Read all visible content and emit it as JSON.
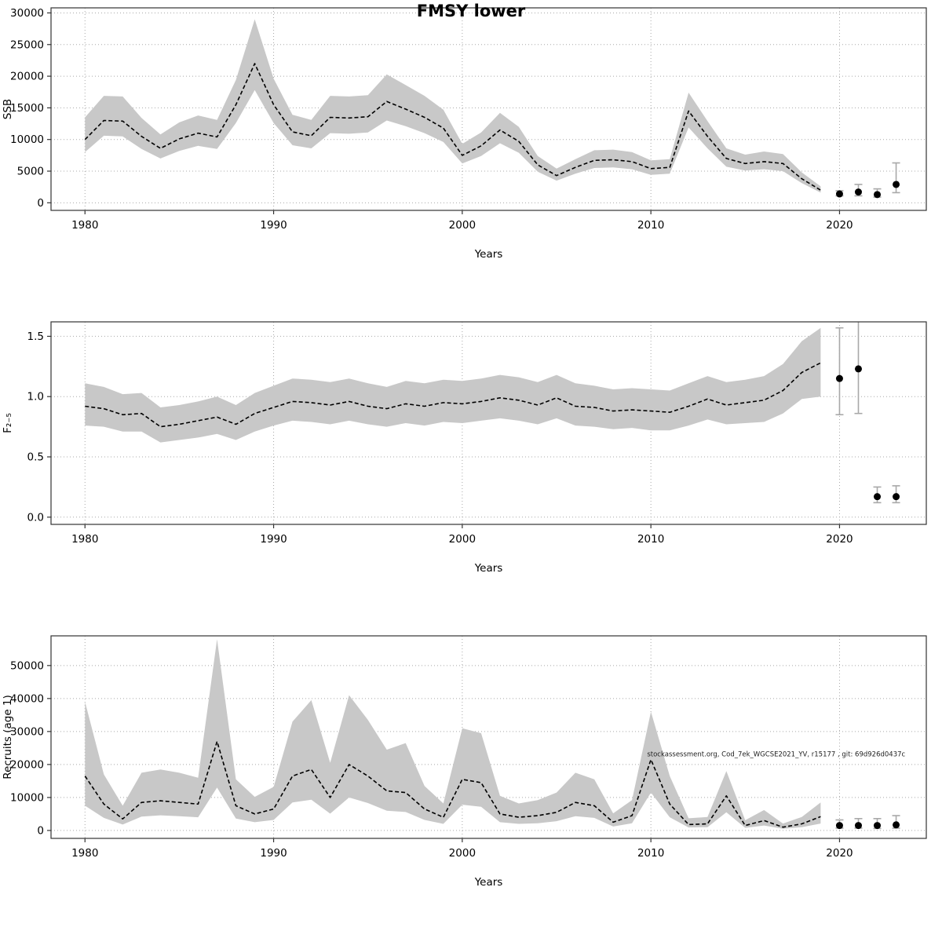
{
  "title": "FMSY lower",
  "colors": {
    "band": "#c8c8c8",
    "line": "#000000",
    "point": "#000000",
    "errorbar": "#a8a8a8"
  },
  "chart_data": [
    {
      "id": "ssb",
      "type": "line",
      "title": "FMSY lower",
      "xlabel": "Years",
      "ylabel": "SSB",
      "legend": "mean with confidence band; forecast points with error bars",
      "grid": true,
      "xlim": [
        1978.2,
        2024.6
      ],
      "ylim": [
        -1200,
        30800
      ],
      "xticks": [
        1980,
        1990,
        2000,
        2010,
        2020
      ],
      "xticklabels": [
        "1980",
        "1990",
        "2000",
        "2010",
        "2020"
      ],
      "yticks": [
        0,
        5000,
        10000,
        15000,
        20000,
        25000,
        30000
      ],
      "yticklabels": [
        "0",
        "5000",
        "10000",
        "15000",
        "20000",
        "25000",
        "30000"
      ],
      "x": [
        1980,
        1981,
        1982,
        1983,
        1984,
        1985,
        1986,
        1987,
        1988,
        1989,
        1990,
        1991,
        1992,
        1993,
        1994,
        1995,
        1996,
        1997,
        1998,
        1999,
        2000,
        2001,
        2002,
        2003,
        2004,
        2005,
        2006,
        2007,
        2008,
        2009,
        2010,
        2011,
        2012,
        2013,
        2014,
        2015,
        2016,
        2017,
        2018,
        2019
      ],
      "mean": [
        10000,
        13000,
        12900,
        10500,
        8600,
        10100,
        11000,
        10400,
        15500,
        22000,
        15500,
        11200,
        10600,
        13500,
        13400,
        13600,
        16000,
        14800,
        13500,
        11800,
        7500,
        9000,
        11500,
        9700,
        6000,
        4300,
        5600,
        6700,
        6800,
        6500,
        5400,
        5600,
        14500,
        10500,
        7000,
        6200,
        6500,
        6200,
        3800,
        2000
      ],
      "lo": [
        8000,
        10600,
        10500,
        8500,
        7000,
        8200,
        9000,
        8500,
        12600,
        17800,
        12600,
        9100,
        8600,
        11000,
        10900,
        11100,
        13000,
        12100,
        11000,
        9600,
        6200,
        7400,
        9400,
        7900,
        4900,
        3500,
        4600,
        5500,
        5600,
        5300,
        4400,
        4600,
        11900,
        8600,
        5700,
        5100,
        5300,
        5000,
        3100,
        1600
      ],
      "hi": [
        13500,
        16900,
        16800,
        13400,
        10800,
        12700,
        13800,
        13100,
        19400,
        29000,
        19600,
        13900,
        13100,
        16900,
        16800,
        17000,
        20300,
        18600,
        16900,
        14700,
        9300,
        11100,
        14200,
        12000,
        7400,
        5400,
        6900,
        8300,
        8400,
        8000,
        6700,
        6900,
        17400,
        12900,
        8600,
        7600,
        8100,
        7700,
        4800,
        2600
      ],
      "points": {
        "x": [
          2020,
          2021,
          2022,
          2023
        ],
        "y": [
          1400,
          1700,
          1300,
          2900
        ],
        "lo": [
          1100,
          1100,
          900,
          1600
        ],
        "hi": [
          1900,
          2900,
          2200,
          6300
        ]
      }
    },
    {
      "id": "f",
      "type": "line",
      "title": "",
      "xlabel": "Years",
      "ylabel": "F₂₋₅",
      "legend": "mean with confidence band; forecast points with error bars",
      "grid": true,
      "xlim": [
        1978.2,
        2024.6
      ],
      "ylim": [
        -0.06,
        1.62
      ],
      "xticks": [
        1980,
        1990,
        2000,
        2010,
        2020
      ],
      "xticklabels": [
        "1980",
        "1990",
        "2000",
        "2010",
        "2020"
      ],
      "yticks": [
        0,
        0.5,
        1,
        1.5
      ],
      "yticklabels": [
        "0.0",
        "0.5",
        "1.0",
        "1.5"
      ],
      "x": [
        1980,
        1981,
        1982,
        1983,
        1984,
        1985,
        1986,
        1987,
        1988,
        1989,
        1990,
        1991,
        1992,
        1993,
        1994,
        1995,
        1996,
        1997,
        1998,
        1999,
        2000,
        2001,
        2002,
        2003,
        2004,
        2005,
        2006,
        2007,
        2008,
        2009,
        2010,
        2011,
        2012,
        2013,
        2014,
        2015,
        2016,
        2017,
        2018,
        2019
      ],
      "mean": [
        0.92,
        0.9,
        0.85,
        0.86,
        0.75,
        0.77,
        0.8,
        0.83,
        0.77,
        0.86,
        0.91,
        0.96,
        0.95,
        0.93,
        0.96,
        0.92,
        0.9,
        0.94,
        0.92,
        0.95,
        0.94,
        0.96,
        0.99,
        0.97,
        0.93,
        0.99,
        0.92,
        0.91,
        0.88,
        0.89,
        0.88,
        0.87,
        0.92,
        0.98,
        0.93,
        0.95,
        0.97,
        1.05,
        1.2,
        1.28
      ],
      "lo": [
        0.76,
        0.75,
        0.71,
        0.71,
        0.62,
        0.64,
        0.66,
        0.69,
        0.64,
        0.71,
        0.76,
        0.8,
        0.79,
        0.77,
        0.8,
        0.77,
        0.75,
        0.78,
        0.76,
        0.79,
        0.78,
        0.8,
        0.82,
        0.8,
        0.77,
        0.82,
        0.76,
        0.75,
        0.73,
        0.74,
        0.72,
        0.72,
        0.76,
        0.81,
        0.77,
        0.78,
        0.79,
        0.86,
        0.98,
        1.0
      ],
      "hi": [
        1.11,
        1.08,
        1.02,
        1.03,
        0.91,
        0.93,
        0.96,
        1.0,
        0.93,
        1.03,
        1.09,
        1.15,
        1.14,
        1.12,
        1.15,
        1.11,
        1.08,
        1.13,
        1.11,
        1.14,
        1.13,
        1.15,
        1.18,
        1.16,
        1.12,
        1.18,
        1.11,
        1.09,
        1.06,
        1.07,
        1.06,
        1.05,
        1.11,
        1.17,
        1.12,
        1.14,
        1.17,
        1.27,
        1.46,
        1.57
      ],
      "points": {
        "x": [
          2020,
          2021,
          2022,
          2023
        ],
        "y": [
          1.15,
          1.23,
          0.17,
          0.17
        ],
        "lo": [
          0.85,
          0.86,
          0.12,
          0.12
        ],
        "hi": [
          1.57,
          1.78,
          0.25,
          0.26
        ]
      }
    },
    {
      "id": "recruits",
      "type": "line",
      "title": "",
      "xlabel": "Years",
      "ylabel": "Recruits (age 1)",
      "legend": "mean with confidence band; forecast points with error bars",
      "grid": true,
      "xlim": [
        1978.2,
        2024.6
      ],
      "ylim": [
        -2400,
        59000
      ],
      "xticks": [
        1980,
        1990,
        2000,
        2010,
        2020
      ],
      "xticklabels": [
        "1980",
        "1990",
        "2000",
        "2010",
        "2020"
      ],
      "yticks": [
        0,
        10000,
        20000,
        30000,
        40000,
        50000
      ],
      "yticklabels": [
        "0",
        "10000",
        "20000",
        "30000",
        "40000",
        "50000"
      ],
      "x": [
        1980,
        1981,
        1982,
        1983,
        1984,
        1985,
        1986,
        1987,
        1988,
        1989,
        1990,
        1991,
        1992,
        1993,
        1994,
        1995,
        1996,
        1997,
        1998,
        1999,
        2000,
        2001,
        2002,
        2003,
        2004,
        2005,
        2006,
        2007,
        2008,
        2009,
        2010,
        2011,
        2012,
        2013,
        2014,
        2015,
        2016,
        2017,
        2018,
        2019
      ],
      "mean": [
        16500,
        8000,
        3500,
        8500,
        9000,
        8500,
        8000,
        27000,
        7500,
        5000,
        6500,
        16500,
        18500,
        10000,
        20000,
        16500,
        12000,
        11500,
        6500,
        4000,
        15500,
        14500,
        5000,
        4000,
        4500,
        5500,
        8500,
        7500,
        2500,
        4500,
        21500,
        8000,
        1800,
        2000,
        10500,
        1500,
        3000,
        1000,
        2000,
        4200
      ],
      "lo": [
        7500,
        3800,
        1800,
        4200,
        4600,
        4300,
        4000,
        13000,
        3600,
        2500,
        3200,
        8500,
        9300,
        5100,
        10000,
        8300,
        6000,
        5600,
        3200,
        2000,
        7800,
        7200,
        2500,
        2000,
        2200,
        2800,
        4300,
        3800,
        1200,
        2200,
        11500,
        4000,
        900,
        1000,
        5500,
        800,
        1500,
        500,
        1000,
        2100
      ],
      "hi": [
        39000,
        17000,
        7500,
        17500,
        18500,
        17500,
        16000,
        58000,
        15500,
        10200,
        13200,
        33000,
        39500,
        20500,
        41000,
        33500,
        24500,
        26500,
        13500,
        8200,
        31000,
        29500,
        10500,
        8200,
        9200,
        11500,
        17500,
        15500,
        5200,
        9200,
        36000,
        16500,
        3700,
        4100,
        18000,
        3100,
        6200,
        2100,
        4100,
        8500
      ],
      "points": {
        "x": [
          2020,
          2021,
          2022,
          2023
        ],
        "y": [
          1500,
          1500,
          1500,
          1700
        ],
        "lo": [
          700,
          700,
          600,
          700
        ],
        "hi": [
          3200,
          3600,
          3600,
          4500
        ]
      },
      "annotation": {
        "x": 2009.8,
        "y": 22500,
        "text": "stockassessment.org, Cod_7ek_WGCSE2021_YV, r15177 , git: 69d926d0437c"
      }
    }
  ]
}
